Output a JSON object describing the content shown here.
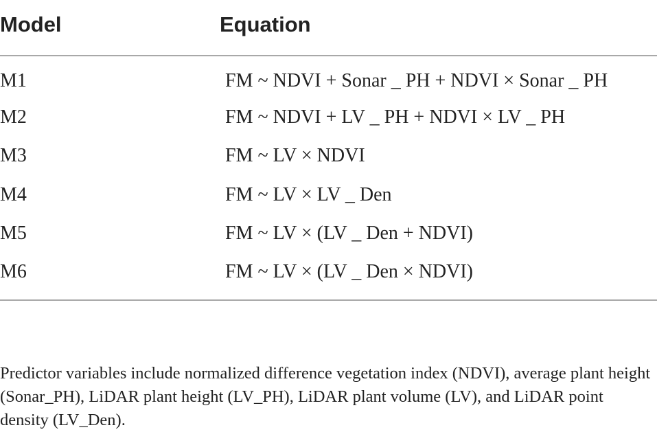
{
  "table": {
    "headers": {
      "model": "Model",
      "equation": "Equation"
    },
    "rows": [
      {
        "model": "M1",
        "equation": "FM ~ NDVI + Sonar _ PH + NDVI × Sonar _ PH"
      },
      {
        "model": "M2",
        "equation": "FM ~ NDVI + LV _ PH + NDVI × LV _ PH"
      },
      {
        "model": "M3",
        "equation": "FM ~ LV × NDVI"
      },
      {
        "model": "M4",
        "equation": "FM ~ LV × LV _ Den"
      },
      {
        "model": "M5",
        "equation": "FM ~ LV × (LV _ Den + NDVI)"
      },
      {
        "model": "M6",
        "equation": "FM ~ LV × (LV _ Den × NDVI)"
      }
    ]
  },
  "footnote": "Predictor variables include normalized difference vegetation index (NDVI), average plant height (Sonar_PH), LiDAR plant height (LV_PH), LiDAR plant volume (LV), and LiDAR point density (LV_Den)."
}
